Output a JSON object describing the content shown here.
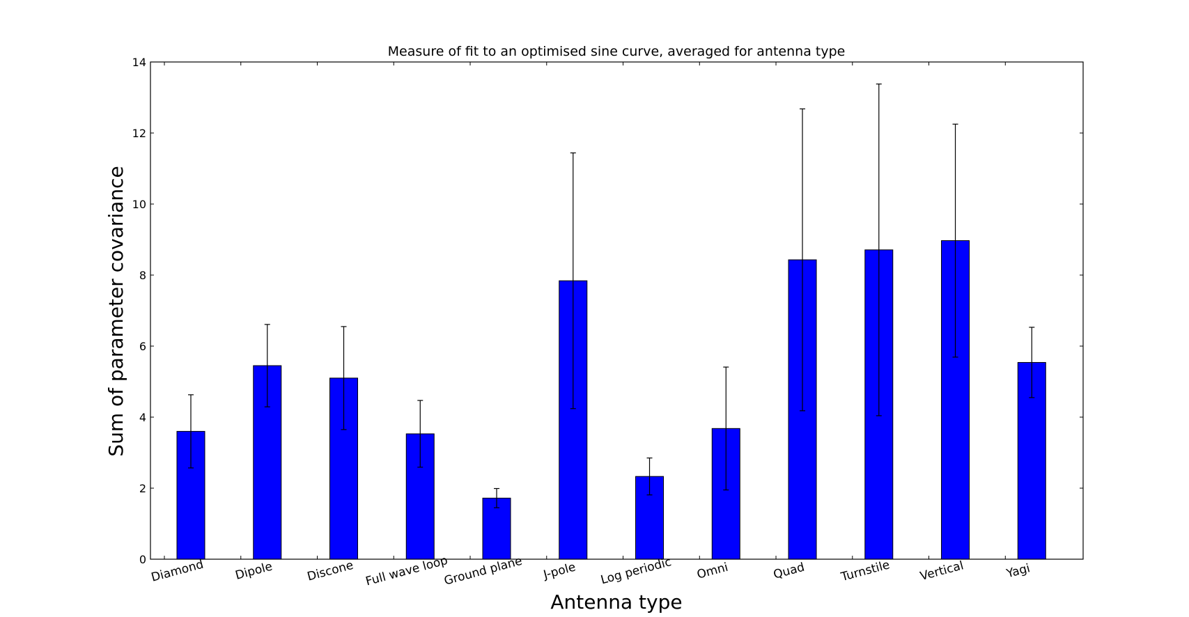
{
  "chart_data": {
    "type": "bar",
    "title": "Measure of fit to an optimised sine curve, averaged for antenna type",
    "xlabel": "Antenna type",
    "ylabel": "Sum of parameter covariance",
    "categories": [
      "Diamond",
      "Dipole",
      "Discone",
      "Full wave loop",
      "Ground plane",
      "J-pole",
      "Log periodic",
      "Omni",
      "Quad",
      "Turnstile",
      "Vertical",
      "Yagi"
    ],
    "values": [
      3.6,
      5.45,
      5.1,
      3.53,
      1.72,
      7.84,
      2.33,
      3.68,
      8.43,
      8.71,
      8.97,
      5.54
    ],
    "error": [
      1.03,
      1.16,
      1.45,
      0.94,
      0.27,
      3.6,
      0.52,
      1.73,
      4.25,
      4.67,
      3.28,
      0.99
    ],
    "ylim": [
      0,
      14
    ],
    "yticks": [
      0,
      2,
      4,
      6,
      8,
      10,
      12,
      14
    ],
    "bar_color": "#0000ff",
    "grid": false,
    "legend": "none"
  }
}
